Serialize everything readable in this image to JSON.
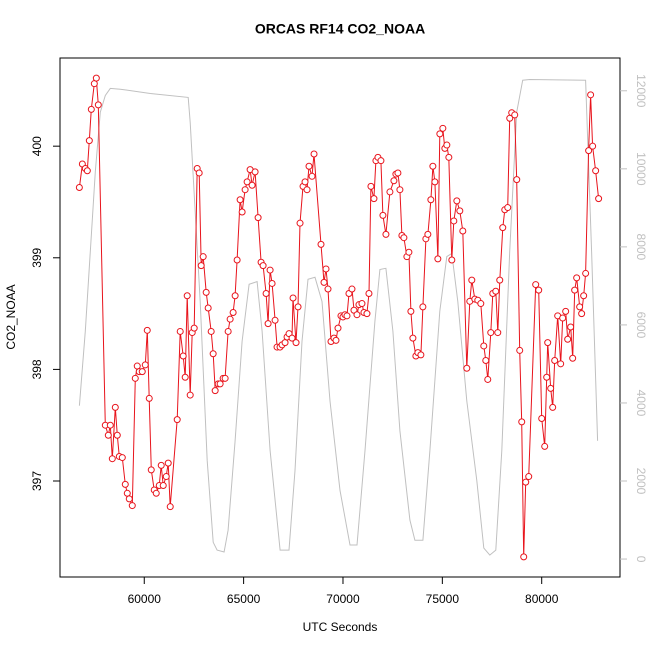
{
  "chart_data": {
    "type": "line",
    "title": "ORCAS RF14 CO2_NOAA",
    "xlabel": "UTC Seconds",
    "ylabel": "CO2_NOAA",
    "xlim": [
      55760,
      83940
    ],
    "ylim": [
      396.14,
      400.79
    ],
    "y2lim": [
      -460,
      12840
    ],
    "xticks": [
      60000,
      65000,
      70000,
      75000,
      80000
    ],
    "yticks": [
      397,
      398,
      399,
      400
    ],
    "y2ticks": [
      0,
      2000,
      4000,
      6000,
      8000,
      10000,
      12000
    ],
    "series": [
      {
        "color": "#e8141c",
        "points": true,
        "x": [
          56734,
          56885,
          57035,
          57135,
          57236,
          57336,
          57487,
          57588,
          57688,
          58040,
          58191,
          58291,
          58392,
          58543,
          58643,
          58744,
          58895,
          59045,
          59146,
          59246,
          59397,
          59548,
          59648,
          59749,
          59899,
          60050,
          60151,
          60251,
          60352,
          60502,
          60603,
          60754,
          60854,
          60955,
          61106,
          61206,
          61307,
          61658,
          61809,
          61960,
          62060,
          62161,
          62312,
          62412,
          62513,
          62664,
          62764,
          62865,
          62965,
          63116,
          63216,
          63367,
          63467,
          63568,
          63719,
          63819,
          63970,
          64070,
          64221,
          64322,
          64472,
          64573,
          64673,
          64824,
          64925,
          65075,
          65176,
          65327,
          65427,
          65578,
          65729,
          65879,
          65980,
          66131,
          66231,
          66332,
          66432,
          66583,
          66683,
          66834,
          66935,
          67085,
          67186,
          67286,
          67437,
          67487,
          67638,
          67739,
          67839,
          67990,
          68090,
          68191,
          68291,
          68442,
          68543,
          68894,
          69045,
          69146,
          69246,
          69397,
          69548,
          69648,
          69749,
          69899,
          70000,
          70100,
          70201,
          70301,
          70452,
          70553,
          70704,
          70804,
          70955,
          71055,
          71206,
          71307,
          71407,
          71558,
          71658,
          71759,
          71910,
          72010,
          72161,
          72362,
          72563,
          72663,
          72764,
          72864,
          72965,
          73065,
          73216,
          73317,
          73417,
          73518,
          73668,
          73769,
          73920,
          74020,
          74171,
          74271,
          74422,
          74523,
          74623,
          74774,
          74874,
          75025,
          75126,
          75226,
          75327,
          75477,
          75578,
          75729,
          75879,
          76030,
          76231,
          76382,
          76482,
          76633,
          76784,
          76935,
          77085,
          77186,
          77286,
          77437,
          77538,
          77688,
          77789,
          77889,
          78040,
          78141,
          78291,
          78392,
          78492,
          78643,
          78744,
          78894,
          78995,
          79095,
          79196,
          79347,
          79698,
          79849,
          80000,
          80151,
          80251,
          80302,
          80452,
          80553,
          80653,
          80804,
          80955,
          81055,
          81206,
          81307,
          81457,
          81558,
          81658,
          81759,
          81910,
          82010,
          82111,
          82211,
          82362,
          82462,
          82563,
          82714,
          82864
        ],
        "values": [
          399.63,
          399.84,
          399.8,
          399.78,
          400.05,
          400.33,
          400.56,
          400.61,
          400.37,
          397.5,
          397.41,
          397.5,
          397.2,
          397.66,
          397.41,
          397.22,
          397.21,
          396.97,
          396.89,
          396.84,
          396.78,
          397.92,
          398.03,
          397.98,
          397.98,
          398.04,
          398.35,
          397.74,
          397.1,
          396.92,
          396.89,
          396.96,
          397.14,
          396.96,
          397.04,
          397.16,
          396.77,
          397.55,
          398.34,
          398.12,
          397.93,
          398.66,
          397.77,
          398.33,
          398.37,
          399.8,
          399.76,
          398.93,
          399.01,
          398.69,
          398.55,
          398.34,
          398.14,
          397.81,
          397.87,
          397.87,
          397.92,
          397.92,
          398.34,
          398.45,
          398.51,
          398.66,
          398.98,
          399.52,
          399.41,
          399.61,
          399.68,
          399.79,
          399.65,
          399.77,
          399.36,
          398.96,
          398.93,
          398.68,
          398.41,
          398.89,
          398.77,
          398.44,
          398.2,
          398.2,
          398.22,
          398.24,
          398.29,
          398.32,
          398.28,
          398.64,
          398.24,
          398.56,
          399.31,
          399.64,
          399.68,
          399.61,
          399.82,
          399.73,
          399.93,
          399.12,
          398.78,
          398.9,
          398.72,
          398.25,
          398.28,
          398.26,
          398.37,
          398.48,
          398.47,
          398.49,
          398.48,
          398.68,
          398.72,
          398.53,
          398.49,
          398.58,
          398.59,
          398.51,
          398.5,
          398.68,
          399.64,
          399.53,
          399.87,
          399.9,
          399.87,
          399.38,
          399.21,
          399.59,
          399.69,
          399.75,
          399.76,
          399.61,
          399.2,
          399.18,
          399.01,
          399.05,
          398.52,
          398.28,
          398.12,
          398.15,
          398.13,
          398.56,
          399.17,
          399.21,
          399.52,
          399.82,
          399.68,
          398.99,
          400.11,
          400.16,
          399.98,
          400.01,
          399.9,
          398.98,
          399.33,
          399.51,
          399.42,
          399.24,
          398.01,
          398.61,
          398.8,
          398.63,
          398.62,
          398.59,
          398.21,
          398.08,
          397.91,
          398.33,
          398.68,
          398.7,
          398.33,
          398.8,
          399.27,
          399.43,
          399.45,
          400.25,
          400.3,
          400.28,
          399.7,
          398.17,
          397.53,
          396.32,
          396.99,
          397.04,
          398.76,
          398.71,
          397.56,
          397.31,
          397.93,
          398.24,
          397.83,
          397.66,
          398.08,
          398.48,
          398.05,
          398.46,
          398.52,
          398.27,
          398.38,
          398.1,
          398.71,
          398.82,
          398.56,
          398.5,
          398.66,
          398.86,
          399.96,
          400.46,
          400,
          399.78,
          399.53
        ]
      },
      {
        "color": "#c0c0c0",
        "axis": "y2",
        "points": false,
        "x": [
          56734,
          57035,
          57286,
          57537,
          57788,
          58040,
          58291,
          58794,
          60302,
          62211,
          62312,
          62814,
          63166,
          63467,
          63668,
          64020,
          64221,
          64573,
          64925,
          65276,
          65678,
          65930,
          66332,
          66834,
          67286,
          67588,
          67940,
          68241,
          68593,
          68945,
          69347,
          69849,
          70352,
          70704,
          71106,
          71608,
          71859,
          72161,
          72513,
          72864,
          73367,
          73618,
          74020,
          74372,
          74874,
          75226,
          75477,
          75779,
          76231,
          76734,
          77085,
          77387,
          77688,
          77990,
          78392,
          78744,
          79045,
          79397,
          82211,
          82513,
          82814
        ],
        "values": [
          3930,
          5840,
          7880,
          9920,
          11450,
          11880,
          12060,
          12040,
          11930,
          11830,
          11190,
          6600,
          2520,
          430,
          230,
          180,
          740,
          3030,
          5580,
          7040,
          7110,
          5840,
          2780,
          230,
          230,
          2270,
          5580,
          7170,
          7220,
          6600,
          4050,
          1760,
          360,
          360,
          2780,
          6090,
          7420,
          7450,
          5840,
          3290,
          1000,
          480,
          480,
          2780,
          6350,
          7750,
          7830,
          6600,
          4050,
          2010,
          280,
          100,
          230,
          2780,
          7880,
          11450,
          12270,
          12290,
          12270,
          7880,
          3030
        ]
      }
    ]
  }
}
